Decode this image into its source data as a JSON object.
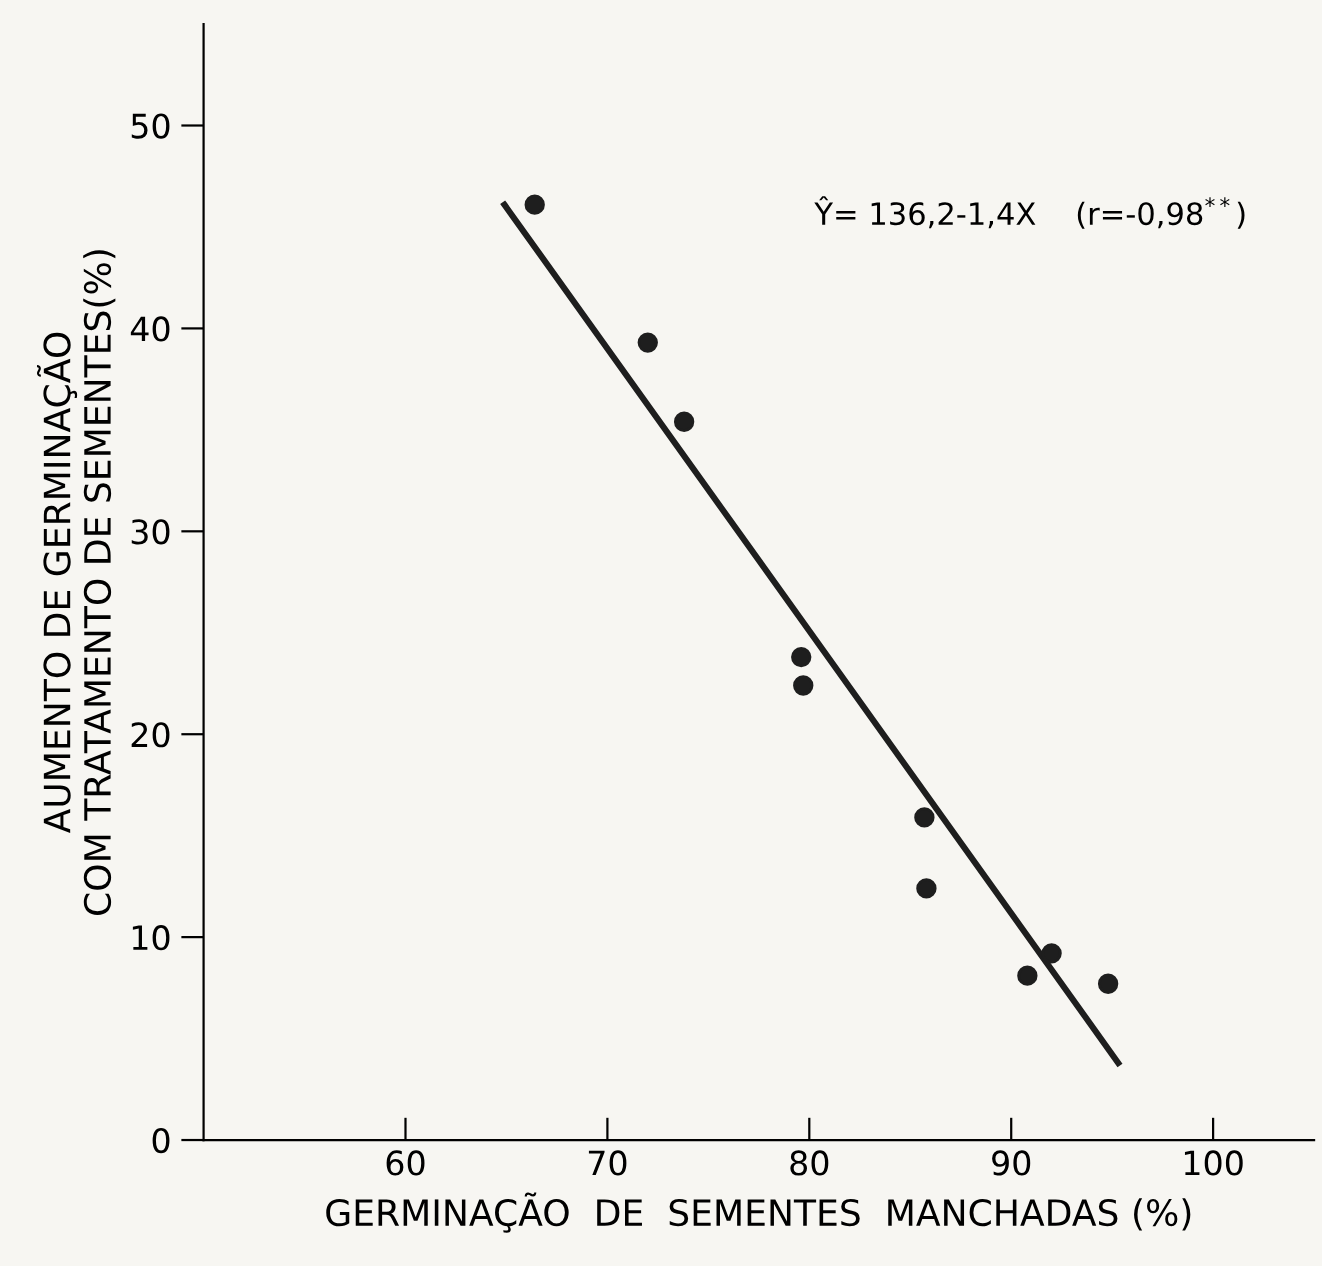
{
  "chart_data": {
    "type": "scatter",
    "xlabel": "GERMINAÇÃO  DE  SEMENTES  MANCHADAS (%)",
    "ylabel": "AUMENTO DE GERMINAÇÃO\nCOM TRATAMENTO DE SEMENTES(%)",
    "annotations": [
      "Ŷ= 136,2-1,4X    (r=-0,98$^{**}$)"
    ],
    "x": [
      66.4,
      72.0,
      73.8,
      79.6,
      79.7,
      85.7,
      85.8,
      90.8,
      92.0,
      94.8
    ],
    "series": [
      {
        "color": "#1e1e1e",
        "marker": "circle",
        "values": [
          46.1,
          39.3,
          35.4,
          23.8,
          22.4,
          15.9,
          12.4,
          8.1,
          9.2,
          7.7
        ]
      },
      {
        "type": "line",
        "color": "#1e1e1e",
        "x": [
          64.9,
          95.3
        ],
        "values": [
          46.1,
          3.8
        ],
        "line_style": "solid"
      }
    ],
    "xlim": [
      50,
      105
    ],
    "ylim": [
      0,
      55
    ],
    "xticks": [
      60,
      70,
      80,
      90,
      100
    ],
    "yticks": [
      0,
      10,
      20,
      30,
      40,
      50
    ],
    "grid": false,
    "legend": false
  }
}
